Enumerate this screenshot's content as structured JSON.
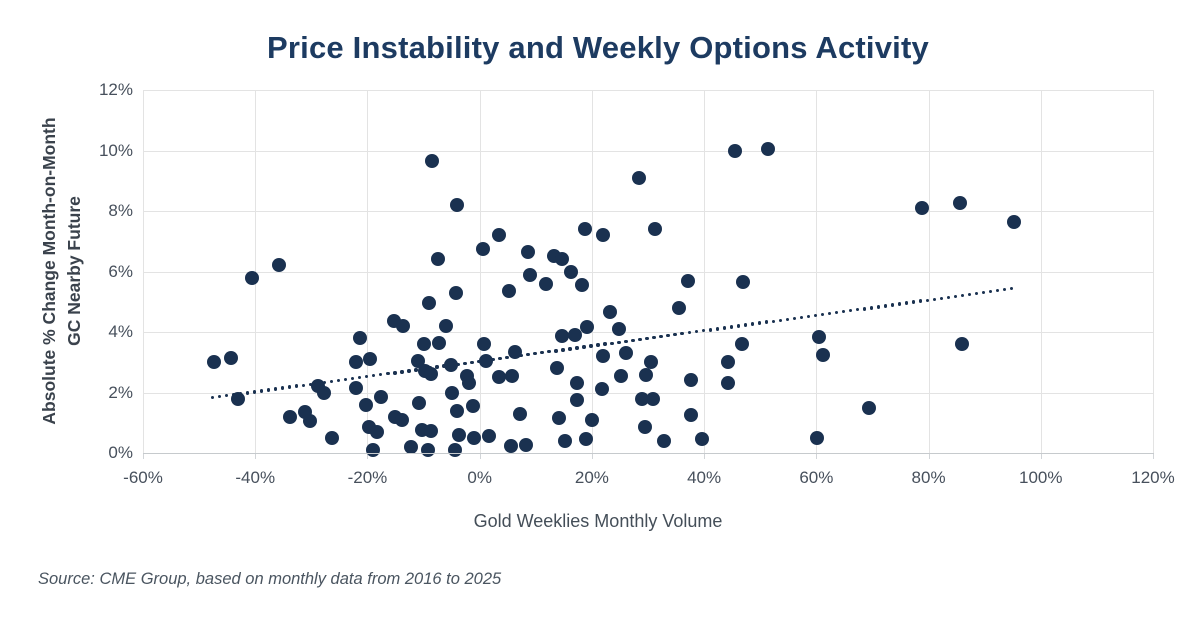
{
  "title": "Price Instability and Weekly Options Activity",
  "source_note": "Source: CME Group, based on monthly data from 2016 to 2025",
  "colors": {
    "point": "#1a3150",
    "trendline": "#1a3150",
    "title": "#1d3b61",
    "tick_label": "#47505c",
    "x_axis_title": "#444e58",
    "y_axis_title": "#3a424c",
    "source": "#4a5560",
    "gridline": "#e3e3e3",
    "axis_line": "#c6cacd",
    "tick_stub": "#d2d5d8"
  },
  "chart_data": {
    "type": "scatter",
    "title": "Price Instability and Weekly Options Activity",
    "xlabel": "Gold Weeklies Monthly Volume",
    "ylabel_line1": "Absolute % Change Month-on-Month",
    "ylabel_line2": "GC Nearby  Future",
    "xlim": [
      -60,
      120
    ],
    "ylim": [
      0,
      12
    ],
    "grid": true,
    "legend": "none",
    "x_tick_values": [
      -60,
      -40,
      -20,
      0,
      20,
      40,
      60,
      80,
      100,
      120
    ],
    "x_tick_labels": [
      "-60%",
      "-40%",
      "-20%",
      "0%",
      "20%",
      "40%",
      "60%",
      "80%",
      "100%",
      "120%"
    ],
    "y_tick_values": [
      0,
      2,
      4,
      6,
      8,
      10,
      12
    ],
    "y_tick_labels": [
      "0%",
      "2%",
      "4%",
      "6%",
      "8%",
      "10%",
      "12%"
    ],
    "points": [
      [
        -47.3,
        3.0
      ],
      [
        -44.3,
        3.15
      ],
      [
        -43.0,
        1.8
      ],
      [
        -40.5,
        5.8
      ],
      [
        -35.7,
        6.2
      ],
      [
        -33.8,
        1.2
      ],
      [
        -31.1,
        1.35
      ],
      [
        -30.2,
        1.05
      ],
      [
        -28.9,
        2.2
      ],
      [
        -27.8,
        2.0
      ],
      [
        -26.3,
        0.5
      ],
      [
        -22.1,
        3.0
      ],
      [
        -19.6,
        3.1
      ],
      [
        -22.0,
        2.15
      ],
      [
        -21.3,
        3.8
      ],
      [
        -20.2,
        1.6
      ],
      [
        -19.8,
        0.85
      ],
      [
        -18.3,
        0.7
      ],
      [
        -19.0,
        0.1
      ],
      [
        -17.6,
        1.85
      ],
      [
        -15.2,
        4.35
      ],
      [
        -13.6,
        4.2
      ],
      [
        -15.1,
        1.2
      ],
      [
        -13.9,
        1.1
      ],
      [
        -12.2,
        0.2
      ],
      [
        -10.9,
        1.65
      ],
      [
        -10.2,
        0.75
      ],
      [
        -8.7,
        0.72
      ],
      [
        -9.2,
        0.1
      ],
      [
        -11.0,
        3.05
      ],
      [
        -9.8,
        2.7
      ],
      [
        -8.6,
        2.6
      ],
      [
        -10.0,
        3.6
      ],
      [
        -7.3,
        3.65
      ],
      [
        -9.1,
        4.95
      ],
      [
        -8.5,
        9.65
      ],
      [
        -7.5,
        6.4
      ],
      [
        -6.0,
        4.2
      ],
      [
        -4.3,
        5.3
      ],
      [
        -4.0,
        8.2
      ],
      [
        -5.1,
        2.9
      ],
      [
        -4.9,
        2.0
      ],
      [
        -4.0,
        1.4
      ],
      [
        -3.7,
        0.6
      ],
      [
        -2.3,
        2.55
      ],
      [
        -1.9,
        2.3
      ],
      [
        -1.2,
        1.55
      ],
      [
        -1.0,
        0.5
      ],
      [
        -4.4,
        0.1
      ],
      [
        0.6,
        6.75
      ],
      [
        0.8,
        3.6
      ],
      [
        1.1,
        3.05
      ],
      [
        1.7,
        0.55
      ],
      [
        3.4,
        7.2
      ],
      [
        3.4,
        2.5
      ],
      [
        5.7,
        2.55
      ],
      [
        5.2,
        5.35
      ],
      [
        6.3,
        3.35
      ],
      [
        7.1,
        1.3
      ],
      [
        5.5,
        0.22
      ],
      [
        8.2,
        0.27
      ],
      [
        8.6,
        6.65
      ],
      [
        8.9,
        5.88
      ],
      [
        11.8,
        5.6
      ],
      [
        13.2,
        6.5
      ],
      [
        14.7,
        6.4
      ],
      [
        16.2,
        6.0
      ],
      [
        18.3,
        5.55
      ],
      [
        18.8,
        7.4
      ],
      [
        21.9,
        7.2
      ],
      [
        31.2,
        7.4
      ],
      [
        28.4,
        9.1
      ],
      [
        45.5,
        10.0
      ],
      [
        51.3,
        10.05
      ],
      [
        23.2,
        4.65
      ],
      [
        19.2,
        4.15
      ],
      [
        24.8,
        4.1
      ],
      [
        14.7,
        3.87
      ],
      [
        17.0,
        3.9
      ],
      [
        13.7,
        2.8
      ],
      [
        17.3,
        2.3
      ],
      [
        22.0,
        3.2
      ],
      [
        26.0,
        3.3
      ],
      [
        30.6,
        3.0
      ],
      [
        25.2,
        2.55
      ],
      [
        29.7,
        2.57
      ],
      [
        21.8,
        2.1
      ],
      [
        17.4,
        1.75
      ],
      [
        20.0,
        1.1
      ],
      [
        14.2,
        1.15
      ],
      [
        15.2,
        0.4
      ],
      [
        19.0,
        0.45
      ],
      [
        29.0,
        1.77
      ],
      [
        30.9,
        1.8
      ],
      [
        29.5,
        0.85
      ],
      [
        32.8,
        0.4
      ],
      [
        37.7,
        2.4
      ],
      [
        37.7,
        1.25
      ],
      [
        39.7,
        0.47
      ],
      [
        35.5,
        4.8
      ],
      [
        37.2,
        5.67
      ],
      [
        46.9,
        5.65
      ],
      [
        44.3,
        3.0
      ],
      [
        44.3,
        2.3
      ],
      [
        46.8,
        3.6
      ],
      [
        60.4,
        3.85
      ],
      [
        61.1,
        3.25
      ],
      [
        60.2,
        0.5
      ],
      [
        69.4,
        1.5
      ],
      [
        78.8,
        8.1
      ],
      [
        85.6,
        8.25
      ],
      [
        95.3,
        7.65
      ],
      [
        85.9,
        3.6
      ]
    ],
    "trendline": {
      "style": "dotted",
      "x_start": -47.6,
      "y_start": 1.83,
      "x_end": 94.8,
      "y_end": 5.43
    }
  }
}
